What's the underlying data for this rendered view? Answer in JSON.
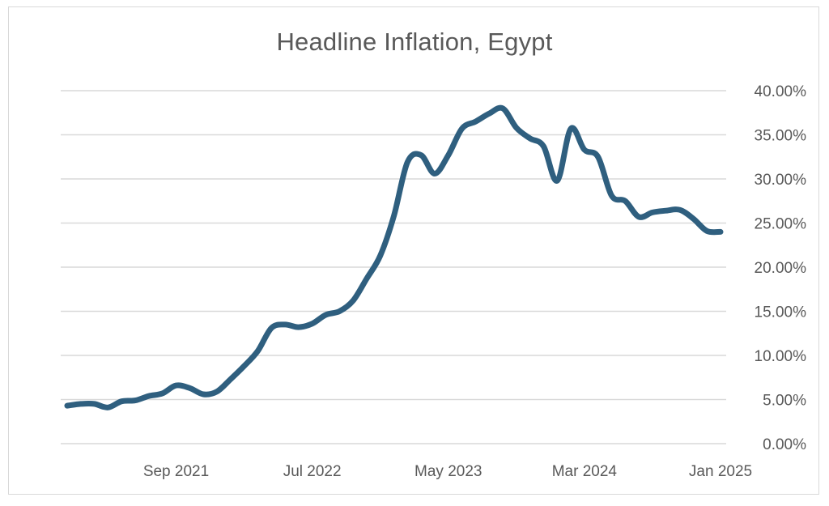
{
  "chart_data": {
    "type": "line",
    "title": "Headline Inflation, Egypt",
    "xlabel": "",
    "ylabel": "",
    "x_tick_labels": [
      "Sep 2021",
      "Jul 2022",
      "May 2023",
      "Mar 2024",
      "Jan 2025"
    ],
    "y_tick_labels": [
      "0.00%",
      "5.00%",
      "10.00%",
      "15.00%",
      "20.00%",
      "25.00%",
      "30.00%",
      "35.00%",
      "40.00%"
    ],
    "ylim": [
      0,
      40
    ],
    "y_axis_position": "right",
    "grid": "horizontal",
    "legend": "none",
    "line_color": "#2f5f7f",
    "series": [
      {
        "x": [
          "2021-01",
          "2021-02",
          "2021-03",
          "2021-04",
          "2021-05",
          "2021-06",
          "2021-07",
          "2021-08",
          "2021-09",
          "2021-10",
          "2021-11",
          "2021-12",
          "2022-01",
          "2022-02",
          "2022-03",
          "2022-04",
          "2022-05",
          "2022-06",
          "2022-07",
          "2022-08",
          "2022-09",
          "2022-10",
          "2022-11",
          "2022-12",
          "2023-01",
          "2023-02",
          "2023-03",
          "2023-04",
          "2023-05",
          "2023-06",
          "2023-07",
          "2023-08",
          "2023-09",
          "2023-10",
          "2023-11",
          "2023-12",
          "2024-01",
          "2024-02",
          "2024-03",
          "2024-04",
          "2024-05",
          "2024-06",
          "2024-07",
          "2024-08",
          "2024-09",
          "2024-10",
          "2024-11",
          "2024-12",
          "2025-01"
        ],
        "values": [
          4.3,
          4.5,
          4.5,
          4.1,
          4.8,
          4.9,
          5.4,
          5.7,
          6.6,
          6.3,
          5.6,
          5.9,
          7.3,
          8.8,
          10.5,
          13.1,
          13.5,
          13.2,
          13.6,
          14.6,
          15.0,
          16.2,
          18.7,
          21.3,
          25.8,
          31.9,
          32.7,
          30.6,
          32.7,
          35.7,
          36.5,
          37.4,
          38.0,
          35.8,
          34.6,
          33.7,
          29.8,
          35.7,
          33.3,
          32.5,
          28.1,
          27.5,
          25.7,
          26.2,
          26.4,
          26.5,
          25.5,
          24.1,
          24.0
        ]
      }
    ]
  }
}
